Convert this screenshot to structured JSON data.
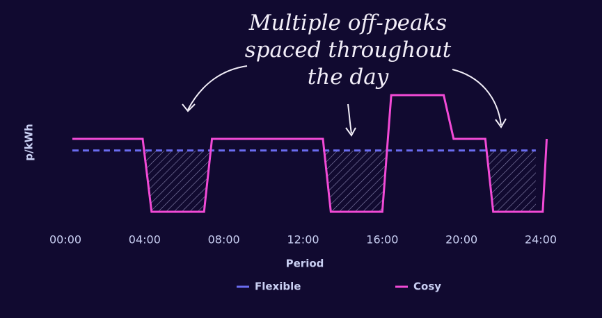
{
  "chart_data": {
    "type": "line",
    "annotation": "Multiple off-peaks spaced throughout the day",
    "x_label": "Period",
    "y_label": "p/kWh",
    "xlim": [
      0,
      24
    ],
    "ylim": [
      0,
      40
    ],
    "xticks": [
      {
        "value": 0,
        "label": "00:00"
      },
      {
        "value": 4,
        "label": "04:00"
      },
      {
        "value": 8,
        "label": "08:00"
      },
      {
        "value": 12,
        "label": "12:00"
      },
      {
        "value": 16,
        "label": "16:00"
      },
      {
        "value": 20,
        "label": "20:00"
      },
      {
        "value": 24,
        "label": "24:00"
      }
    ],
    "grid": false,
    "legend": "bottom",
    "series": [
      {
        "name": "Flexible",
        "color": "#6a6cf0",
        "dashed": true,
        "x": [
          0.35,
          23.75
        ],
        "values": [
          27.6,
          27.6
        ]
      },
      {
        "name": "Cosy",
        "color": "#f24ad6",
        "dashed": false,
        "x": [
          0.35,
          3.9,
          4.35,
          7,
          7.4,
          13,
          13.4,
          16,
          16.45,
          19.1,
          19.6,
          21.2,
          21.6,
          24.1,
          24.3
        ],
        "values": [
          30,
          30,
          15,
          15,
          30,
          30,
          15,
          15,
          39,
          39,
          30,
          30,
          15,
          15,
          30
        ]
      }
    ]
  }
}
